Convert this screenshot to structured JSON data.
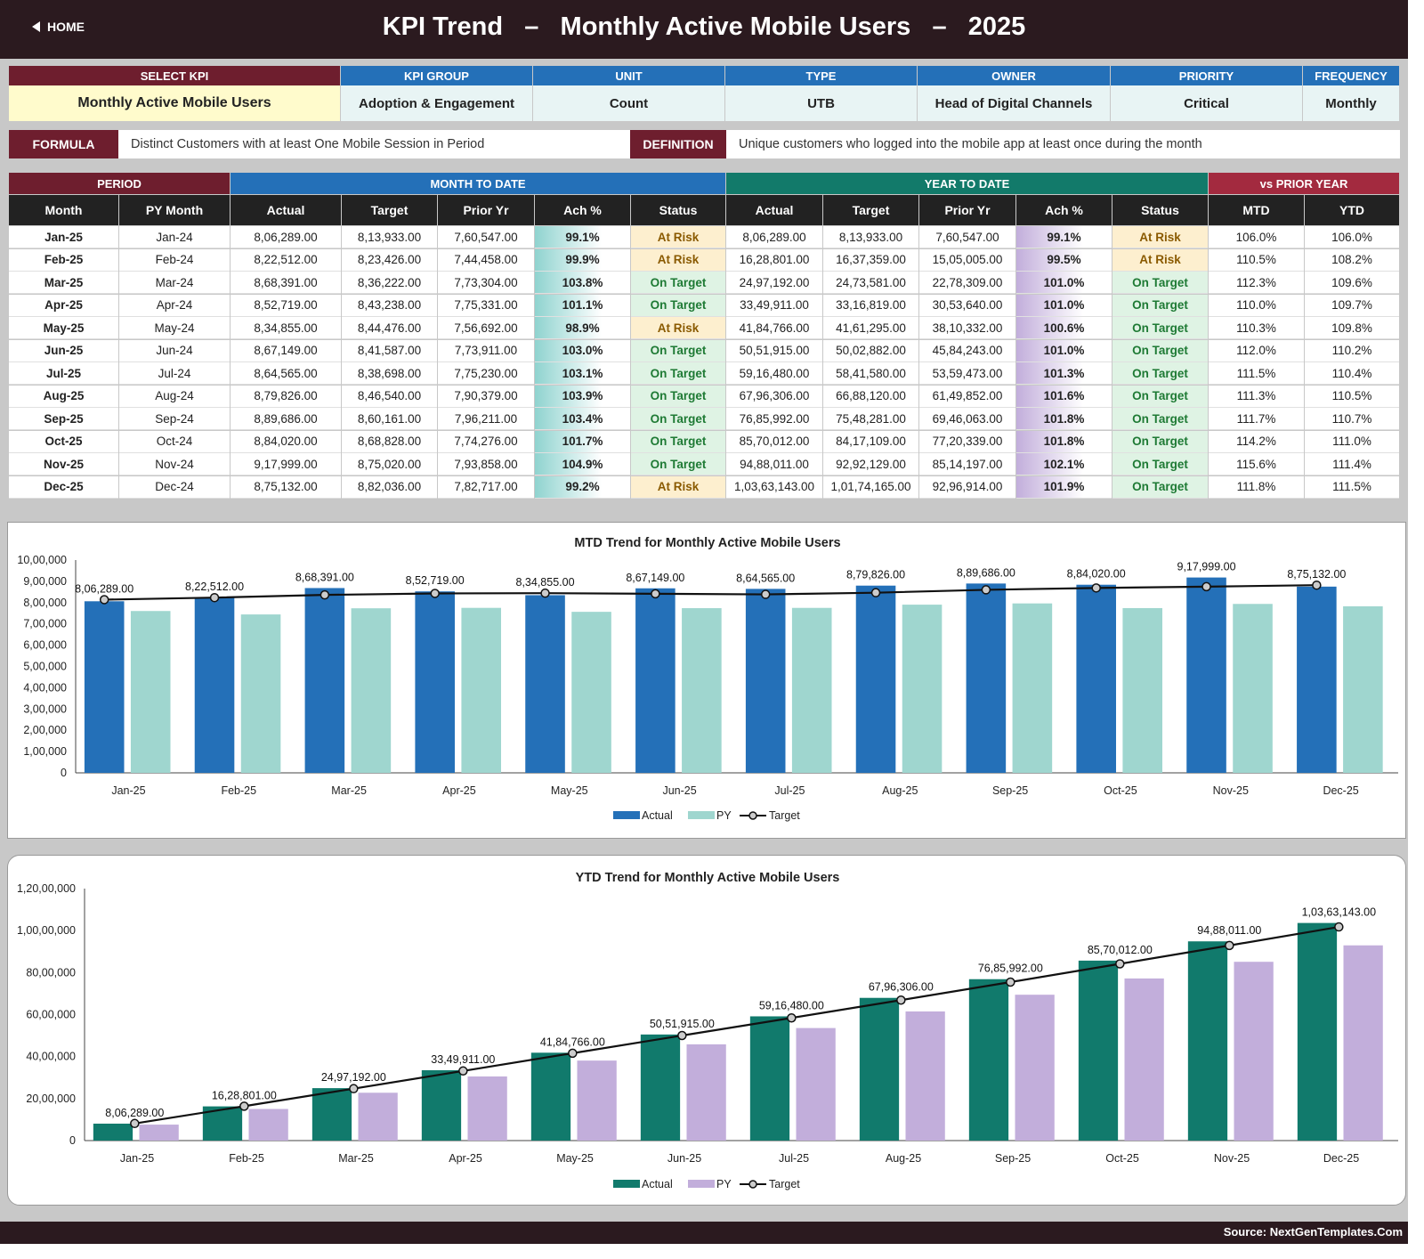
{
  "header": {
    "home_label": "HOME",
    "title": "KPI Trend   –   Monthly Active Mobile Users   –   2025"
  },
  "kpi_info": [
    {
      "label": "SELECT KPI",
      "value": "Monthly Active Mobile Users"
    },
    {
      "label": "KPI GROUP",
      "value": "Adoption & Engagement"
    },
    {
      "label": "UNIT",
      "value": "Count"
    },
    {
      "label": "TYPE",
      "value": "UTB"
    },
    {
      "label": "OWNER",
      "value": "Head of Digital Channels"
    },
    {
      "label": "PRIORITY",
      "value": "Critical"
    },
    {
      "label": "FREQUENCY",
      "value": "Monthly"
    }
  ],
  "formula": {
    "label": "FORMULA",
    "text": "Distinct Customers with at least One Mobile Session in Period"
  },
  "definition": {
    "label": "DEFINITION",
    "text": "Unique customers who logged into the mobile app at least once during the month"
  },
  "table": {
    "groups": [
      "PERIOD",
      "MONTH TO DATE",
      "YEAR TO DATE",
      "vs PRIOR YEAR"
    ],
    "columns": [
      "Month",
      "PY Month",
      "Actual",
      "Target",
      "Prior Yr",
      "Ach %",
      "Status",
      "Actual",
      "Target",
      "Prior Yr",
      "Ach %",
      "Status",
      "MTD",
      "YTD"
    ],
    "rows": [
      [
        "Jan-25",
        "Jan-24",
        "8,06,289.00",
        "8,13,933.00",
        "7,60,547.00",
        "99.1%",
        "At Risk",
        "8,06,289.00",
        "8,13,933.00",
        "7,60,547.00",
        "99.1%",
        "At Risk",
        "106.0%",
        "106.0%"
      ],
      [
        "Feb-25",
        "Feb-24",
        "8,22,512.00",
        "8,23,426.00",
        "7,44,458.00",
        "99.9%",
        "At Risk",
        "16,28,801.00",
        "16,37,359.00",
        "15,05,005.00",
        "99.5%",
        "At Risk",
        "110.5%",
        "108.2%"
      ],
      [
        "Mar-25",
        "Mar-24",
        "8,68,391.00",
        "8,36,222.00",
        "7,73,304.00",
        "103.8%",
        "On Target",
        "24,97,192.00",
        "24,73,581.00",
        "22,78,309.00",
        "101.0%",
        "On Target",
        "112.3%",
        "109.6%"
      ],
      [
        "Apr-25",
        "Apr-24",
        "8,52,719.00",
        "8,43,238.00",
        "7,75,331.00",
        "101.1%",
        "On Target",
        "33,49,911.00",
        "33,16,819.00",
        "30,53,640.00",
        "101.0%",
        "On Target",
        "110.0%",
        "109.7%"
      ],
      [
        "May-25",
        "May-24",
        "8,34,855.00",
        "8,44,476.00",
        "7,56,692.00",
        "98.9%",
        "At Risk",
        "41,84,766.00",
        "41,61,295.00",
        "38,10,332.00",
        "100.6%",
        "On Target",
        "110.3%",
        "109.8%"
      ],
      [
        "Jun-25",
        "Jun-24",
        "8,67,149.00",
        "8,41,587.00",
        "7,73,911.00",
        "103.0%",
        "On Target",
        "50,51,915.00",
        "50,02,882.00",
        "45,84,243.00",
        "101.0%",
        "On Target",
        "112.0%",
        "110.2%"
      ],
      [
        "Jul-25",
        "Jul-24",
        "8,64,565.00",
        "8,38,698.00",
        "7,75,230.00",
        "103.1%",
        "On Target",
        "59,16,480.00",
        "58,41,580.00",
        "53,59,473.00",
        "101.3%",
        "On Target",
        "111.5%",
        "110.4%"
      ],
      [
        "Aug-25",
        "Aug-24",
        "8,79,826.00",
        "8,46,540.00",
        "7,90,379.00",
        "103.9%",
        "On Target",
        "67,96,306.00",
        "66,88,120.00",
        "61,49,852.00",
        "101.6%",
        "On Target",
        "111.3%",
        "110.5%"
      ],
      [
        "Sep-25",
        "Sep-24",
        "8,89,686.00",
        "8,60,161.00",
        "7,96,211.00",
        "103.4%",
        "On Target",
        "76,85,992.00",
        "75,48,281.00",
        "69,46,063.00",
        "101.8%",
        "On Target",
        "111.7%",
        "110.7%"
      ],
      [
        "Oct-25",
        "Oct-24",
        "8,84,020.00",
        "8,68,828.00",
        "7,74,276.00",
        "101.7%",
        "On Target",
        "85,70,012.00",
        "84,17,109.00",
        "77,20,339.00",
        "101.8%",
        "On Target",
        "114.2%",
        "111.0%"
      ],
      [
        "Nov-25",
        "Nov-24",
        "9,17,999.00",
        "8,75,020.00",
        "7,93,858.00",
        "104.9%",
        "On Target",
        "94,88,011.00",
        "92,92,129.00",
        "85,14,197.00",
        "102.1%",
        "On Target",
        "115.6%",
        "111.4%"
      ],
      [
        "Dec-25",
        "Dec-24",
        "8,75,132.00",
        "8,82,036.00",
        "7,82,717.00",
        "99.2%",
        "At Risk",
        "1,03,63,143.00",
        "1,01,74,165.00",
        "92,96,914.00",
        "101.9%",
        "On Target",
        "111.8%",
        "111.5%"
      ]
    ]
  },
  "colors": {
    "mtd_actual": "#2470b8",
    "mtd_py": "#9fd6cf",
    "ytd_actual": "#117a6c",
    "ytd_py": "#c2aedb",
    "header_dark": "#2b1a1f",
    "maroon": "#6e1e2e",
    "blue": "#2470b8",
    "teal": "#127a6a",
    "red": "#a32a3f"
  },
  "chart_data": [
    {
      "type": "bar",
      "title": "MTD Trend for Monthly Active Mobile Users",
      "categories": [
        "Jan-25",
        "Feb-25",
        "Mar-25",
        "Apr-25",
        "May-25",
        "Jun-25",
        "Jul-25",
        "Aug-25",
        "Sep-25",
        "Oct-25",
        "Nov-25",
        "Dec-25"
      ],
      "series": [
        {
          "name": "Actual",
          "values": [
            806289,
            822512,
            868391,
            852719,
            834855,
            867149,
            864565,
            879826,
            889686,
            884020,
            917999,
            875132
          ]
        },
        {
          "name": "PY",
          "values": [
            760547,
            744458,
            773304,
            775331,
            756692,
            773911,
            775230,
            790379,
            796211,
            774276,
            793858,
            782717
          ]
        },
        {
          "name": "Target",
          "values": [
            813933,
            823426,
            836222,
            843238,
            844476,
            841587,
            838698,
            846540,
            860161,
            868828,
            875020,
            882036
          ]
        }
      ],
      "data_labels": [
        "8,06,289.00",
        "8,22,512.00",
        "8,68,391.00",
        "8,52,719.00",
        "8,34,855.00",
        "8,67,149.00",
        "8,64,565.00",
        "8,79,826.00",
        "8,89,686.00",
        "8,84,020.00",
        "9,17,999.00",
        "8,75,132.00"
      ],
      "y_ticks": [
        "0",
        "1,00,000",
        "2,00,000",
        "3,00,000",
        "4,00,000",
        "5,00,000",
        "6,00,000",
        "7,00,000",
        "8,00,000",
        "9,00,000",
        "10,00,000"
      ],
      "ylim": [
        0,
        1000000
      ],
      "legend": "bottom"
    },
    {
      "type": "bar",
      "title": "YTD Trend for Monthly Active Mobile Users",
      "categories": [
        "Jan-25",
        "Feb-25",
        "Mar-25",
        "Apr-25",
        "May-25",
        "Jun-25",
        "Jul-25",
        "Aug-25",
        "Sep-25",
        "Oct-25",
        "Nov-25",
        "Dec-25"
      ],
      "series": [
        {
          "name": "Actual",
          "values": [
            806289,
            1628801,
            2497192,
            3349911,
            4184766,
            5051915,
            5916480,
            6796306,
            7685992,
            8570012,
            9488011,
            10363143
          ]
        },
        {
          "name": "PY",
          "values": [
            760547,
            1505005,
            2278309,
            3053640,
            3810332,
            4584243,
            5359473,
            6149852,
            6946063,
            7720339,
            8514197,
            9296914
          ]
        },
        {
          "name": "Target",
          "values": [
            813933,
            1637359,
            2473581,
            3316819,
            4161295,
            5002882,
            5841580,
            6688120,
            7548281,
            8417109,
            9292129,
            10174165
          ]
        }
      ],
      "data_labels": [
        "8,06,289.00",
        "16,28,801.00",
        "24,97,192.00",
        "33,49,911.00",
        "41,84,766.00",
        "50,51,915.00",
        "59,16,480.00",
        "67,96,306.00",
        "76,85,992.00",
        "85,70,012.00",
        "94,88,011.00",
        "1,03,63,143.00"
      ],
      "y_ticks": [
        "0",
        "20,00,000",
        "40,00,000",
        "60,00,000",
        "80,00,000",
        "1,00,00,000",
        "1,20,00,000"
      ],
      "ylim": [
        0,
        12000000
      ],
      "legend": "bottom"
    }
  ],
  "footer": {
    "source": "Source: NextGenTemplates.Com"
  }
}
